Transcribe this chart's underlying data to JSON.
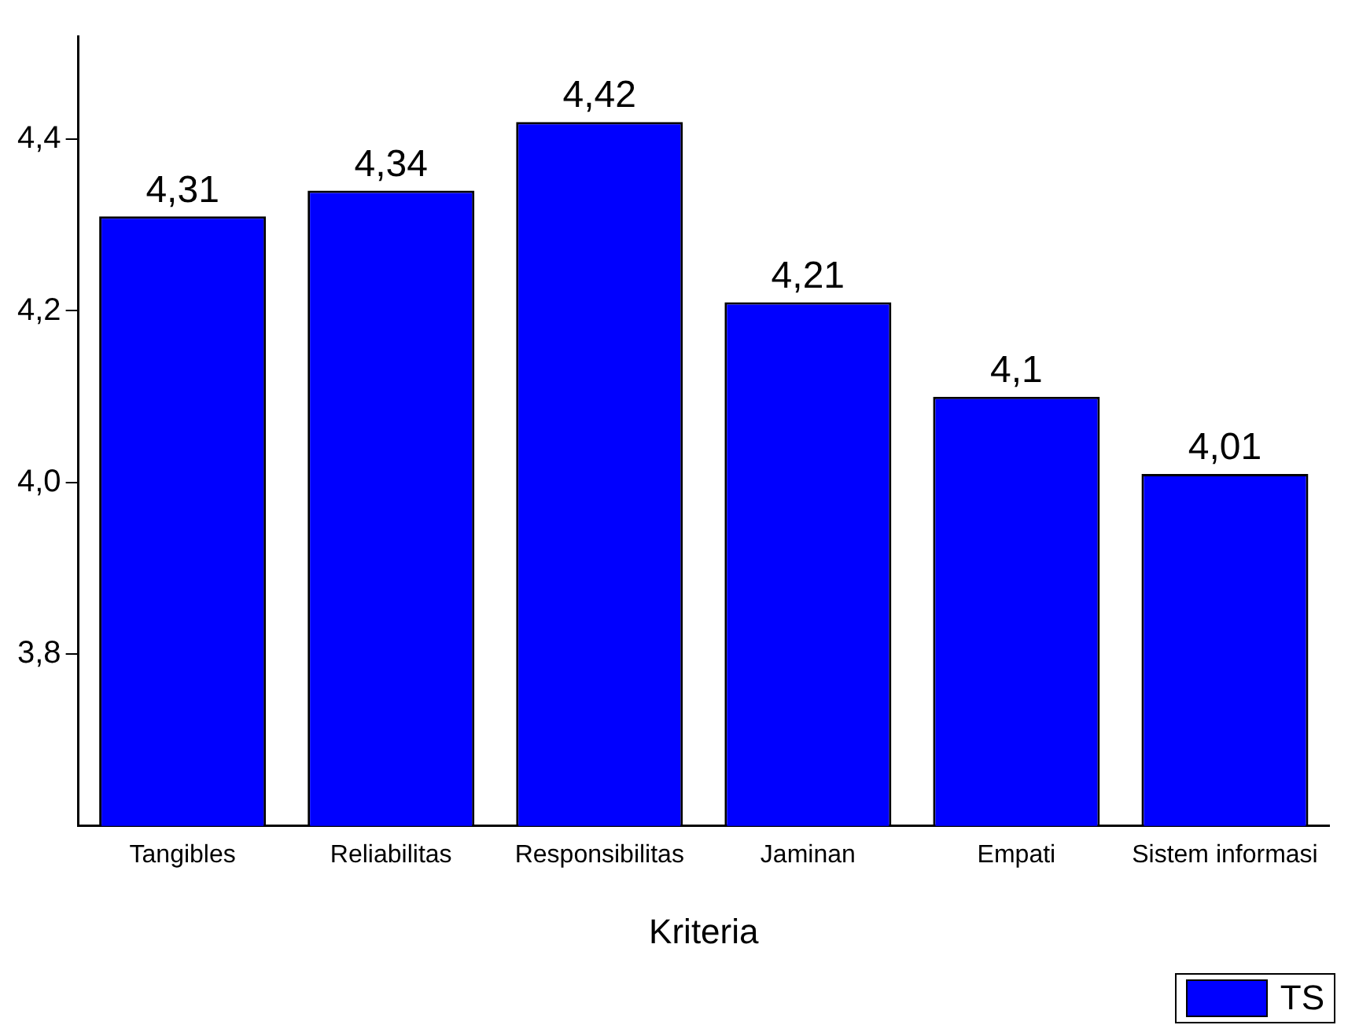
{
  "chart_data": {
    "type": "bar",
    "xlabel": "Kriteria",
    "categories": [
      "Tangibles",
      "Reliabilitas",
      "Responsibilitas",
      "Jaminan",
      "Empati",
      "Sistem informasi"
    ],
    "series": [
      {
        "name": "TS",
        "color": "#0000ff",
        "values": [
          4.31,
          4.34,
          4.42,
          4.21,
          4.1,
          4.01
        ],
        "value_labels": [
          "4,31",
          "4,34",
          "4,42",
          "4,21",
          "4,1",
          "4,01"
        ]
      }
    ],
    "ylim": [
      3.6,
      4.52
    ],
    "yticks": [
      {
        "value": 3.8,
        "label": "3,8"
      },
      {
        "value": 4.0,
        "label": "4,0"
      },
      {
        "value": 4.2,
        "label": "4,2"
      },
      {
        "value": 4.4,
        "label": "4,4"
      }
    ],
    "grid": false,
    "legend": "bottom right"
  }
}
